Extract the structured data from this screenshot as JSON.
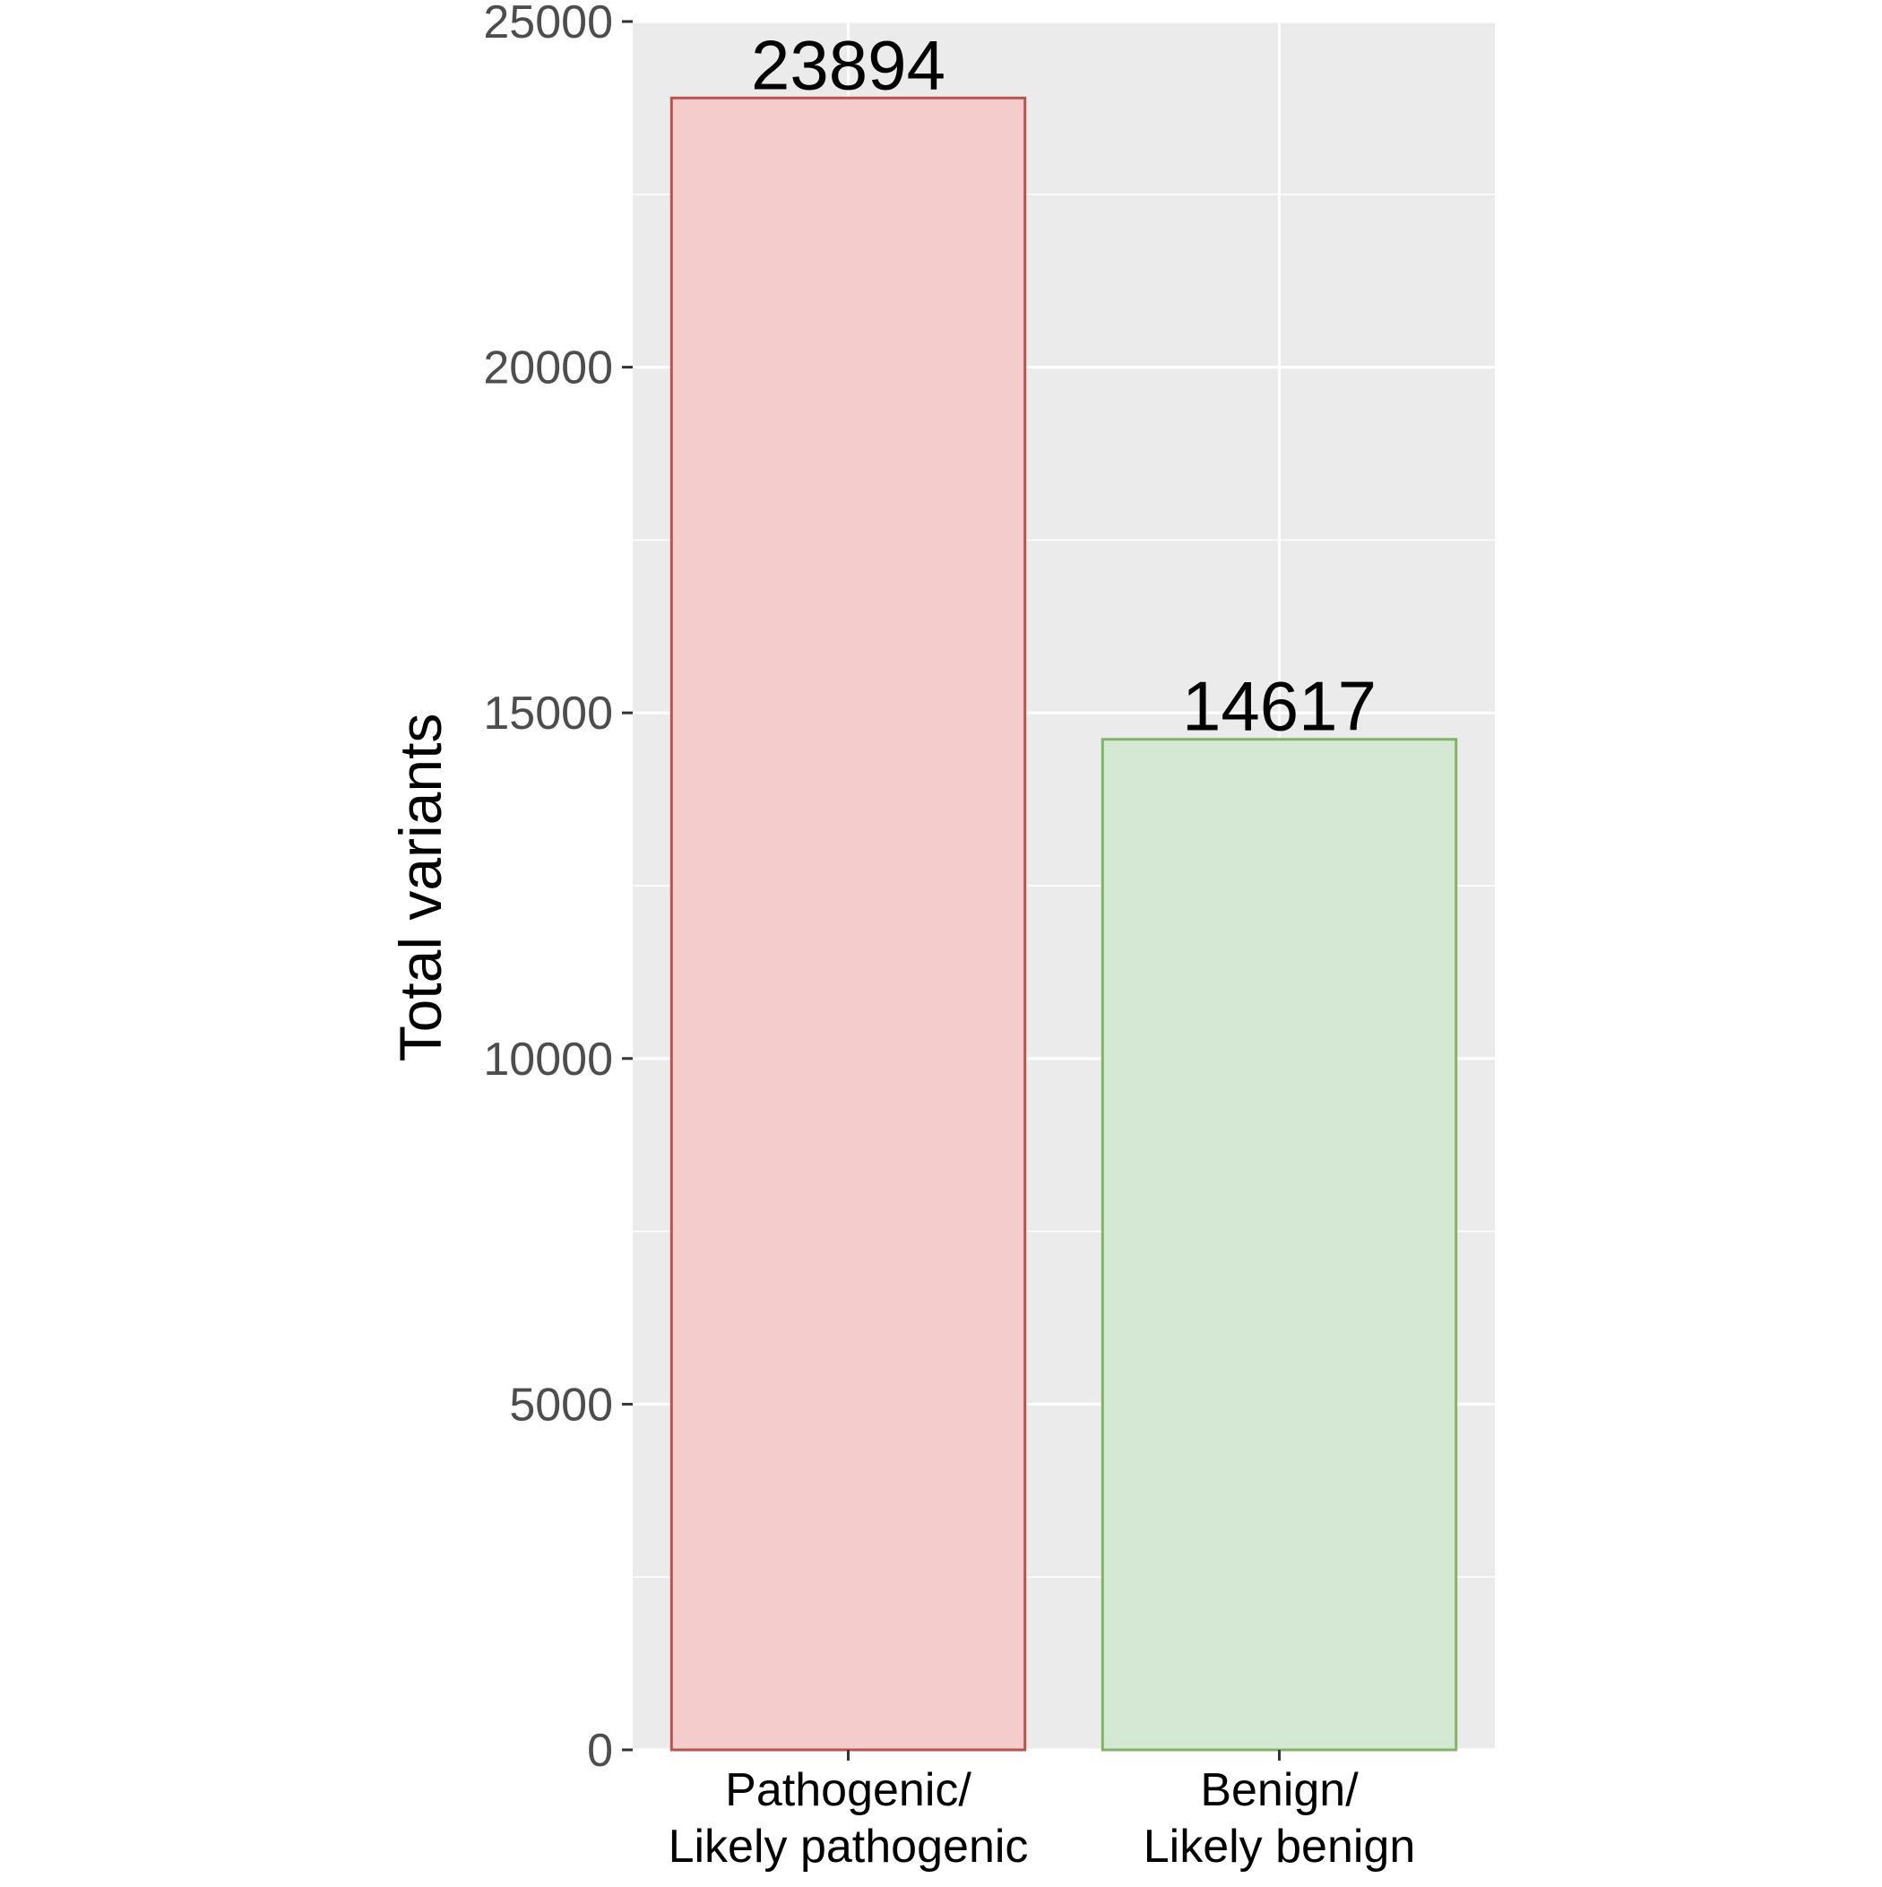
{
  "chart_data": {
    "type": "bar",
    "title": "",
    "xlabel": "",
    "ylabel": "Total variants",
    "categories": [
      [
        "Pathogenic/",
        "Likely pathogenic"
      ],
      [
        "Benign/",
        "Likely benign"
      ]
    ],
    "values": [
      23894,
      14617
    ],
    "data_labels": [
      "23894",
      "14617"
    ],
    "ylim": [
      0,
      25000
    ],
    "yticks": [
      0,
      5000,
      10000,
      15000,
      20000,
      25000
    ],
    "ytick_labels": [
      "0",
      "5000",
      "10000",
      "15000",
      "20000",
      "25000"
    ],
    "grid": true,
    "legend": "none",
    "colors": {
      "panel_background": "#EBEBEB",
      "gridline": "#FFFFFF",
      "bar_fills": [
        "#F5CCCC",
        "#D5E8D4"
      ],
      "bar_strokes": [
        "#B85450",
        "#82B366"
      ],
      "tick_label": "#4D4D4D",
      "axis_tick": "#333333",
      "text": "#000000"
    }
  }
}
